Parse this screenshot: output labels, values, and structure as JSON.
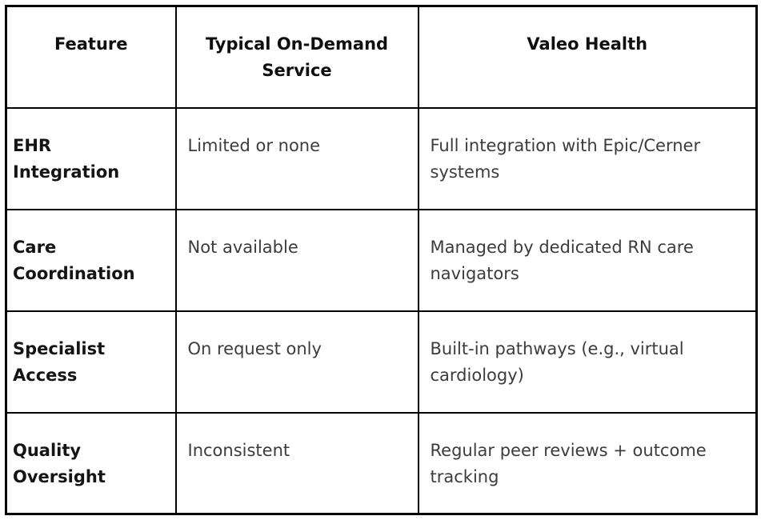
{
  "page": {
    "background_color": "#ffffff",
    "border_color": "#000000",
    "header_text_color": "#0f0f0f",
    "body_text_color": "#3c3c3c"
  },
  "table": {
    "columns": [
      {
        "label": "Feature"
      },
      {
        "label": "Typical On-Demand\nService"
      },
      {
        "label": "Valeo Health"
      }
    ],
    "rows": [
      {
        "feature": "EHR\nIntegration",
        "typical": "Limited or none",
        "valeo": "Full integration with Epic/Cerner\nsystems"
      },
      {
        "feature": "Care\nCoordination",
        "typical": "Not available",
        "valeo": "Managed by dedicated RN care\nnavigators"
      },
      {
        "feature": "Specialist\nAccess",
        "typical": "On request only",
        "valeo": "Built-in pathways (e.g., virtual\ncardiology)"
      },
      {
        "feature": "Quality\nOversight",
        "typical": "Inconsistent",
        "valeo": "Regular peer reviews + outcome\ntracking"
      }
    ]
  }
}
